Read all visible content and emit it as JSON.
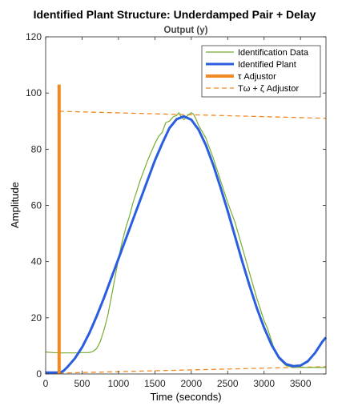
{
  "chart_data": {
    "type": "line",
    "title": "Identified Plant Structure: Underdamped Pair + Delay",
    "subtitle": "Output (y)",
    "xlabel": "Time (seconds)",
    "ylabel": "Amplitude",
    "xlim": [
      0,
      3850
    ],
    "ylim": [
      0,
      120
    ],
    "xticks": [
      "0",
      "500",
      "1000",
      "1500",
      "2000",
      "2500",
      "3000",
      "3500"
    ],
    "yticks": [
      "0",
      "20",
      "40",
      "60",
      "80",
      "100",
      "120"
    ],
    "grid": false,
    "legend_position": "top-right",
    "legend": {
      "identification_data": "Identification Data",
      "identified_plant": "Identified Plant",
      "tau_adjustor": "τ Adjustor",
      "tw_zeta_adjustor": "Tω + ζ Adjustor"
    },
    "colors": {
      "identification_data": "#77AC30",
      "identified_plant": "#2A5DE0",
      "tau_adjustor": "#F08A24",
      "tw_zeta_adjustor": "#F08A24"
    },
    "series": [
      {
        "name": "Identification Data",
        "x": [
          0,
          100,
          200,
          300,
          400,
          500,
          600,
          650,
          700,
          750,
          800,
          850,
          900,
          950,
          1000,
          1050,
          1100,
          1150,
          1200,
          1300,
          1400,
          1500,
          1550,
          1600,
          1650,
          1700,
          1750,
          1800,
          1830,
          1850,
          1900,
          1950,
          2000,
          2030,
          2060,
          2100,
          2200,
          2300,
          2400,
          2500,
          2600,
          2700,
          2800,
          2900,
          3000,
          3050,
          3100,
          3150,
          3200,
          3300,
          3400,
          3500,
          3600,
          3700,
          3800,
          3850
        ],
        "y": [
          7.8,
          7.6,
          7.5,
          7.5,
          7.5,
          7.6,
          7.6,
          8.0,
          9.0,
          11.5,
          15.5,
          20.5,
          27,
          34,
          41,
          47,
          52,
          56,
          61,
          69,
          76,
          82,
          84.5,
          86,
          89.5,
          90,
          91.5,
          92,
          93,
          92,
          90.5,
          92,
          93,
          92.5,
          91,
          88.5,
          84,
          77,
          69,
          61,
          54,
          45,
          36,
          27,
          19,
          16,
          12,
          8,
          5.5,
          3,
          2.3,
          2.3,
          2.3,
          2.3,
          2.3,
          2.3
        ]
      },
      {
        "name": "Identified Plant",
        "x": [
          0,
          100,
          150,
          200,
          250,
          300,
          400,
          500,
          600,
          700,
          800,
          900,
          1000,
          1100,
          1200,
          1300,
          1400,
          1500,
          1600,
          1700,
          1800,
          1900,
          2000,
          2100,
          2200,
          2300,
          2400,
          2500,
          2600,
          2700,
          2800,
          2900,
          3000,
          3100,
          3200,
          3300,
          3400,
          3500,
          3600,
          3700,
          3800,
          3850
        ],
        "y": [
          0.5,
          0.5,
          0.5,
          0.5,
          1.2,
          2.5,
          5.5,
          9.5,
          14.5,
          20.5,
          27,
          34,
          41,
          48,
          55,
          62,
          69,
          76,
          82,
          87.5,
          90.7,
          91.7,
          90.5,
          87,
          81.5,
          74.5,
          66.5,
          58,
          49,
          40,
          31.5,
          23.5,
          16.5,
          10.5,
          6,
          3.5,
          2.8,
          3,
          4.5,
          7.5,
          11.5,
          13
        ]
      },
      {
        "name": "τ Adjustor",
        "x": [
          185,
          185
        ],
        "y": [
          0,
          103
        ]
      },
      {
        "name": "Tω + ζ Adjustor",
        "x": [
          185,
          3850
        ],
        "y": [
          93.5,
          91
        ]
      },
      {
        "name": "Tω + ζ Adjustor (lower)",
        "x": [
          185,
          3850
        ],
        "y": [
          0.3,
          2.6
        ]
      }
    ]
  }
}
